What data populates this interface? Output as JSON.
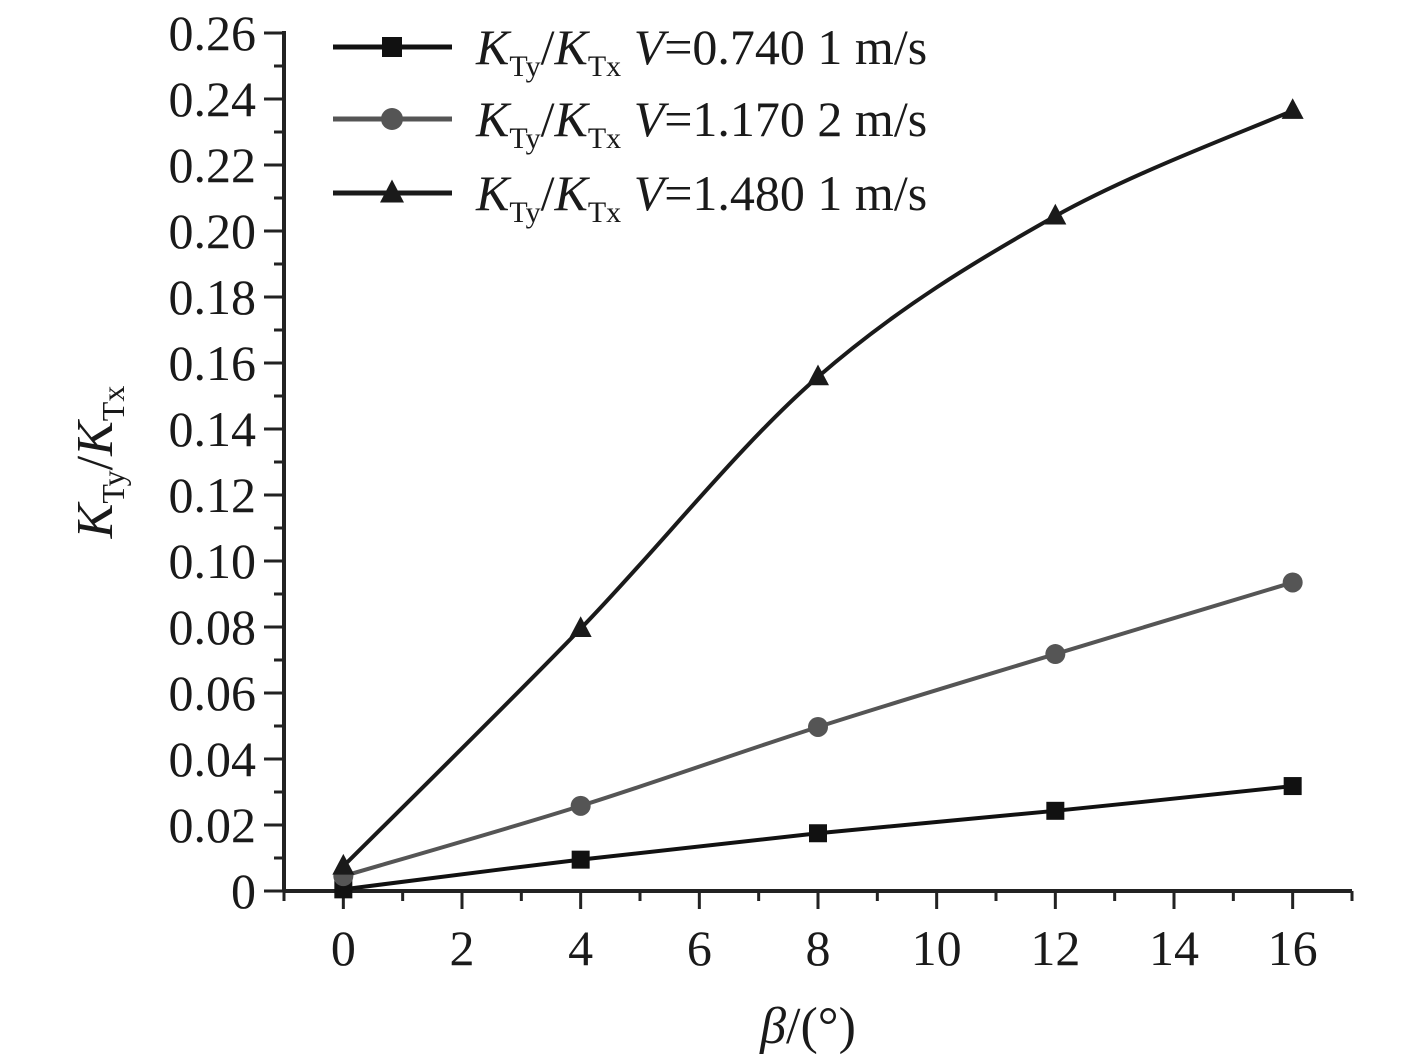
{
  "chart_data": {
    "type": "line",
    "x": [
      0,
      4,
      8,
      12,
      16
    ],
    "xlim": [
      -1,
      17
    ],
    "ylim": [
      0,
      0.26
    ],
    "xticks": [
      "0",
      "2",
      "4",
      "6",
      "8",
      "10",
      "12",
      "14",
      "16"
    ],
    "yticks": [
      "0",
      "0.02",
      "0.04",
      "0.06",
      "0.08",
      "0.10",
      "0.12",
      "0.14",
      "0.16",
      "0.18",
      "0.20",
      "0.22",
      "0.24",
      "0.26"
    ],
    "xlabel": {
      "var": "β",
      "unit": "/(°)"
    },
    "ylabel": {
      "k1": "K",
      "s1": "Ty",
      "slash": "/",
      "k2": "K",
      "s2": "Tx"
    },
    "legend_position": "top-left",
    "grid": false,
    "series": [
      {
        "name": "KTy/KTx V=0.740 1 m/s",
        "label": {
          "k1": "K",
          "s1": "Ty",
          "slash": "/",
          "k2": "K",
          "s2": "Tx",
          "v": "V",
          "value": "=0.740 1 m/s"
        },
        "marker": "square",
        "color": "#111111",
        "values": [
          0.0005,
          0.0095,
          0.0175,
          0.0243,
          0.0318
        ]
      },
      {
        "name": "KTy/KTx V=1.170 2 m/s",
        "label": {
          "k1": "K",
          "s1": "Ty",
          "slash": "/",
          "k2": "K",
          "s2": "Tx",
          "v": "V",
          "value": "=1.170 2 m/s"
        },
        "marker": "circle",
        "color": "#555555",
        "values": [
          0.0045,
          0.0258,
          0.0497,
          0.0718,
          0.0935
        ]
      },
      {
        "name": "KTy/KTx V=1.480 1 m/s",
        "label": {
          "k1": "K",
          "s1": "Ty",
          "slash": "/",
          "k2": "K",
          "s2": "Tx",
          "v": "V",
          "value": "=1.480 1 m/s"
        },
        "marker": "triangle",
        "color": "#1a1a1a",
        "values": [
          0.0075,
          0.0795,
          0.1558,
          0.2045,
          0.2365
        ]
      }
    ]
  }
}
